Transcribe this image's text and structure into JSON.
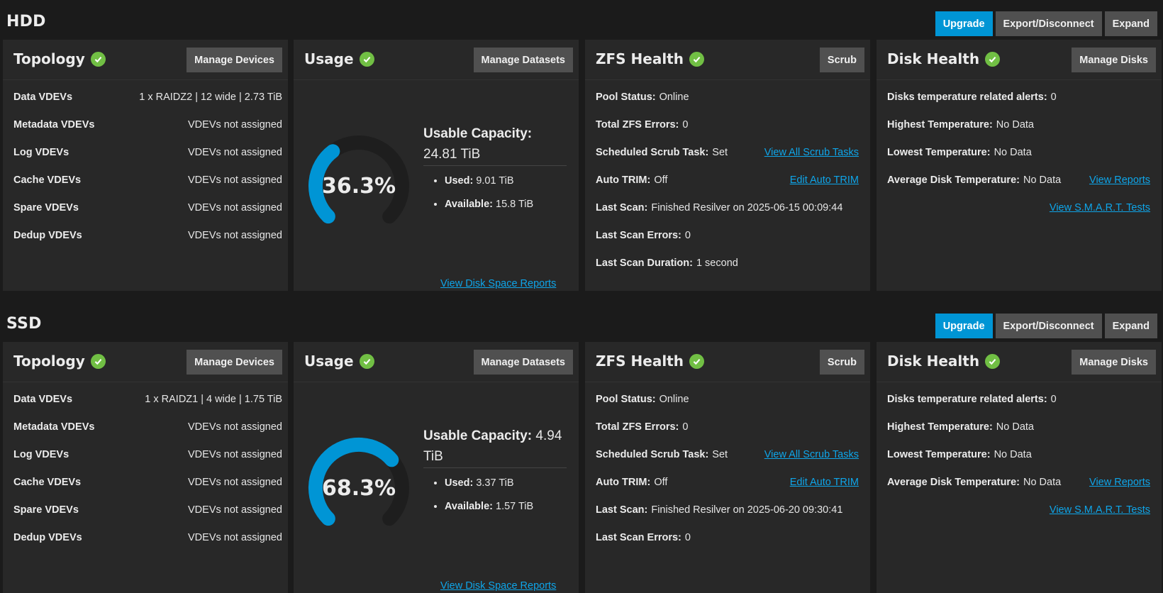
{
  "pools": [
    {
      "name": "HDD",
      "actions": {
        "upgrade": "Upgrade",
        "export": "Export/Disconnect",
        "expand": "Expand"
      },
      "topology": {
        "title": "Topology",
        "button": "Manage Devices",
        "rows": [
          {
            "label": "Data VDEVs",
            "value": "1 x RAIDZ2 | 12 wide | 2.73 TiB"
          },
          {
            "label": "Metadata VDEVs",
            "value": "VDEVs not assigned"
          },
          {
            "label": "Log VDEVs",
            "value": "VDEVs not assigned"
          },
          {
            "label": "Cache VDEVs",
            "value": "VDEVs not assigned"
          },
          {
            "label": "Spare VDEVs",
            "value": "VDEVs not assigned"
          },
          {
            "label": "Dedup VDEVs",
            "value": "VDEVs not assigned"
          }
        ]
      },
      "usage": {
        "title": "Usage",
        "button": "Manage Datasets",
        "percent_label": "36.3%",
        "percent": 36.3,
        "capacity_label": "Usable Capacity:",
        "capacity_value": "24.81 TiB",
        "used_label": "Used:",
        "used_value": "9.01 TiB",
        "available_label": "Available:",
        "available_value": "15.8 TiB",
        "report_link": "View Disk Space Reports"
      },
      "zfs": {
        "title": "ZFS Health",
        "button": "Scrub",
        "pool_status_label": "Pool Status:",
        "pool_status": "Online",
        "errors_label": "Total ZFS Errors:",
        "errors": "0",
        "scrub_task_label": "Scheduled Scrub Task:",
        "scrub_task": "Set",
        "scrub_link": "View All Scrub Tasks",
        "trim_label": "Auto TRIM:",
        "trim": "Off",
        "trim_link": "Edit Auto TRIM",
        "last_scan_label": "Last Scan:",
        "last_scan": "Finished Resilver on 2025-06-15 00:09:44",
        "scan_errors_label": "Last Scan Errors:",
        "scan_errors": "0",
        "scan_duration_label": "Last Scan Duration:",
        "scan_duration": "1 second"
      },
      "disk": {
        "title": "Disk Health",
        "button": "Manage Disks",
        "alerts_label": "Disks temperature related alerts:",
        "alerts": "0",
        "highest_label": "Highest Temperature:",
        "highest": "No Data",
        "lowest_label": "Lowest Temperature:",
        "lowest": "No Data",
        "average_label": "Average Disk Temperature:",
        "average": "No Data",
        "reports_link": "View Reports",
        "smart_link": "View S.M.A.R.T. Tests"
      }
    },
    {
      "name": "SSD",
      "actions": {
        "upgrade": "Upgrade",
        "export": "Export/Disconnect",
        "expand": "Expand"
      },
      "topology": {
        "title": "Topology",
        "button": "Manage Devices",
        "rows": [
          {
            "label": "Data VDEVs",
            "value": "1 x RAIDZ1 | 4 wide | 1.75 TiB"
          },
          {
            "label": "Metadata VDEVs",
            "value": "VDEVs not assigned"
          },
          {
            "label": "Log VDEVs",
            "value": "VDEVs not assigned"
          },
          {
            "label": "Cache VDEVs",
            "value": "VDEVs not assigned"
          },
          {
            "label": "Spare VDEVs",
            "value": "VDEVs not assigned"
          },
          {
            "label": "Dedup VDEVs",
            "value": "VDEVs not assigned"
          }
        ]
      },
      "usage": {
        "title": "Usage",
        "button": "Manage Datasets",
        "percent_label": "68.3%",
        "percent": 68.3,
        "capacity_label": "Usable Capacity:",
        "capacity_value": "4.94 TiB",
        "used_label": "Used:",
        "used_value": "3.37 TiB",
        "available_label": "Available:",
        "available_value": "1.57 TiB",
        "report_link": "View Disk Space Reports"
      },
      "zfs": {
        "title": "ZFS Health",
        "button": "Scrub",
        "pool_status_label": "Pool Status:",
        "pool_status": "Online",
        "errors_label": "Total ZFS Errors:",
        "errors": "0",
        "scrub_task_label": "Scheduled Scrub Task:",
        "scrub_task": "Set",
        "scrub_link": "View All Scrub Tasks",
        "trim_label": "Auto TRIM:",
        "trim": "Off",
        "trim_link": "Edit Auto TRIM",
        "last_scan_label": "Last Scan:",
        "last_scan": "Finished Resilver on 2025-06-20 09:30:41",
        "scan_errors_label": "Last Scan Errors:",
        "scan_errors": "0"
      },
      "disk": {
        "title": "Disk Health",
        "button": "Manage Disks",
        "alerts_label": "Disks temperature related alerts:",
        "alerts": "0",
        "highest_label": "Highest Temperature:",
        "highest": "No Data",
        "lowest_label": "Lowest Temperature:",
        "lowest": "No Data",
        "average_label": "Average Disk Temperature:",
        "average": "No Data",
        "reports_link": "View Reports",
        "smart_link": "View S.M.A.R.T. Tests"
      }
    }
  ],
  "colors": {
    "accent": "#0095d5",
    "ok": "#71bf44",
    "link": "#0ea5e9",
    "gauge_track": "#1e1e1e"
  }
}
